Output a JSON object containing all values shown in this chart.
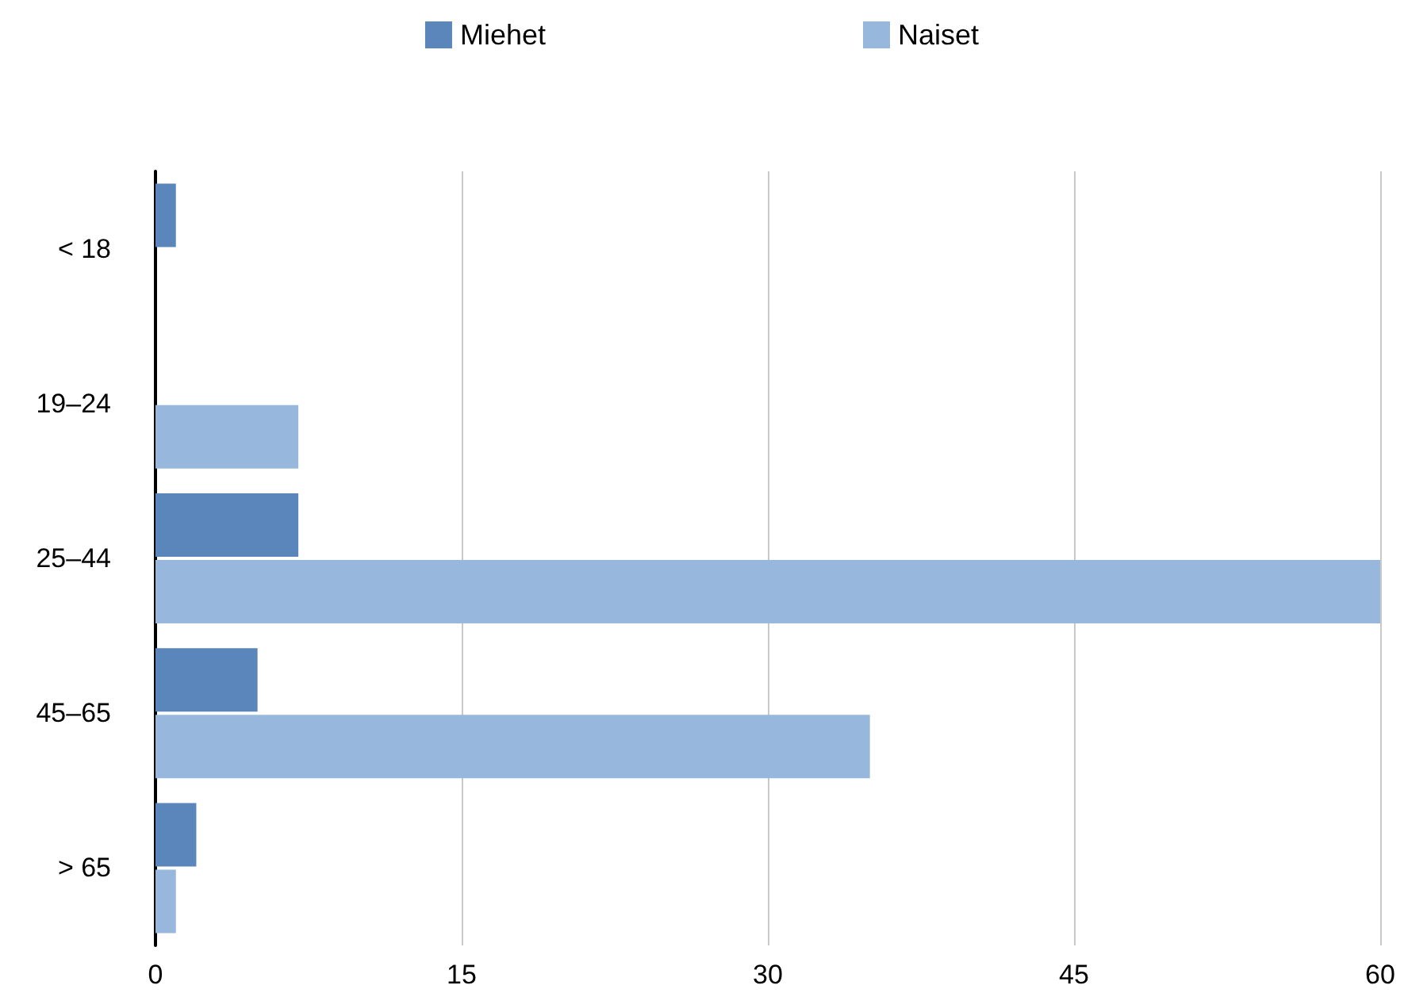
{
  "chart_data": {
    "type": "bar",
    "orientation": "horizontal",
    "categories": [
      "< 18",
      "19–24",
      "25–44",
      "45–65",
      "> 65"
    ],
    "series": [
      {
        "name": "Miehet",
        "color": "#5b86bb",
        "values": [
          1,
          0,
          7,
          5,
          2
        ]
      },
      {
        "name": "Naiset",
        "color": "#97b8dc",
        "values": [
          0,
          7,
          60,
          35,
          1
        ]
      }
    ],
    "xlim": [
      0,
      60
    ],
    "xticks": [
      0,
      15,
      30,
      45,
      60
    ],
    "grid": "x",
    "legend": "top"
  }
}
